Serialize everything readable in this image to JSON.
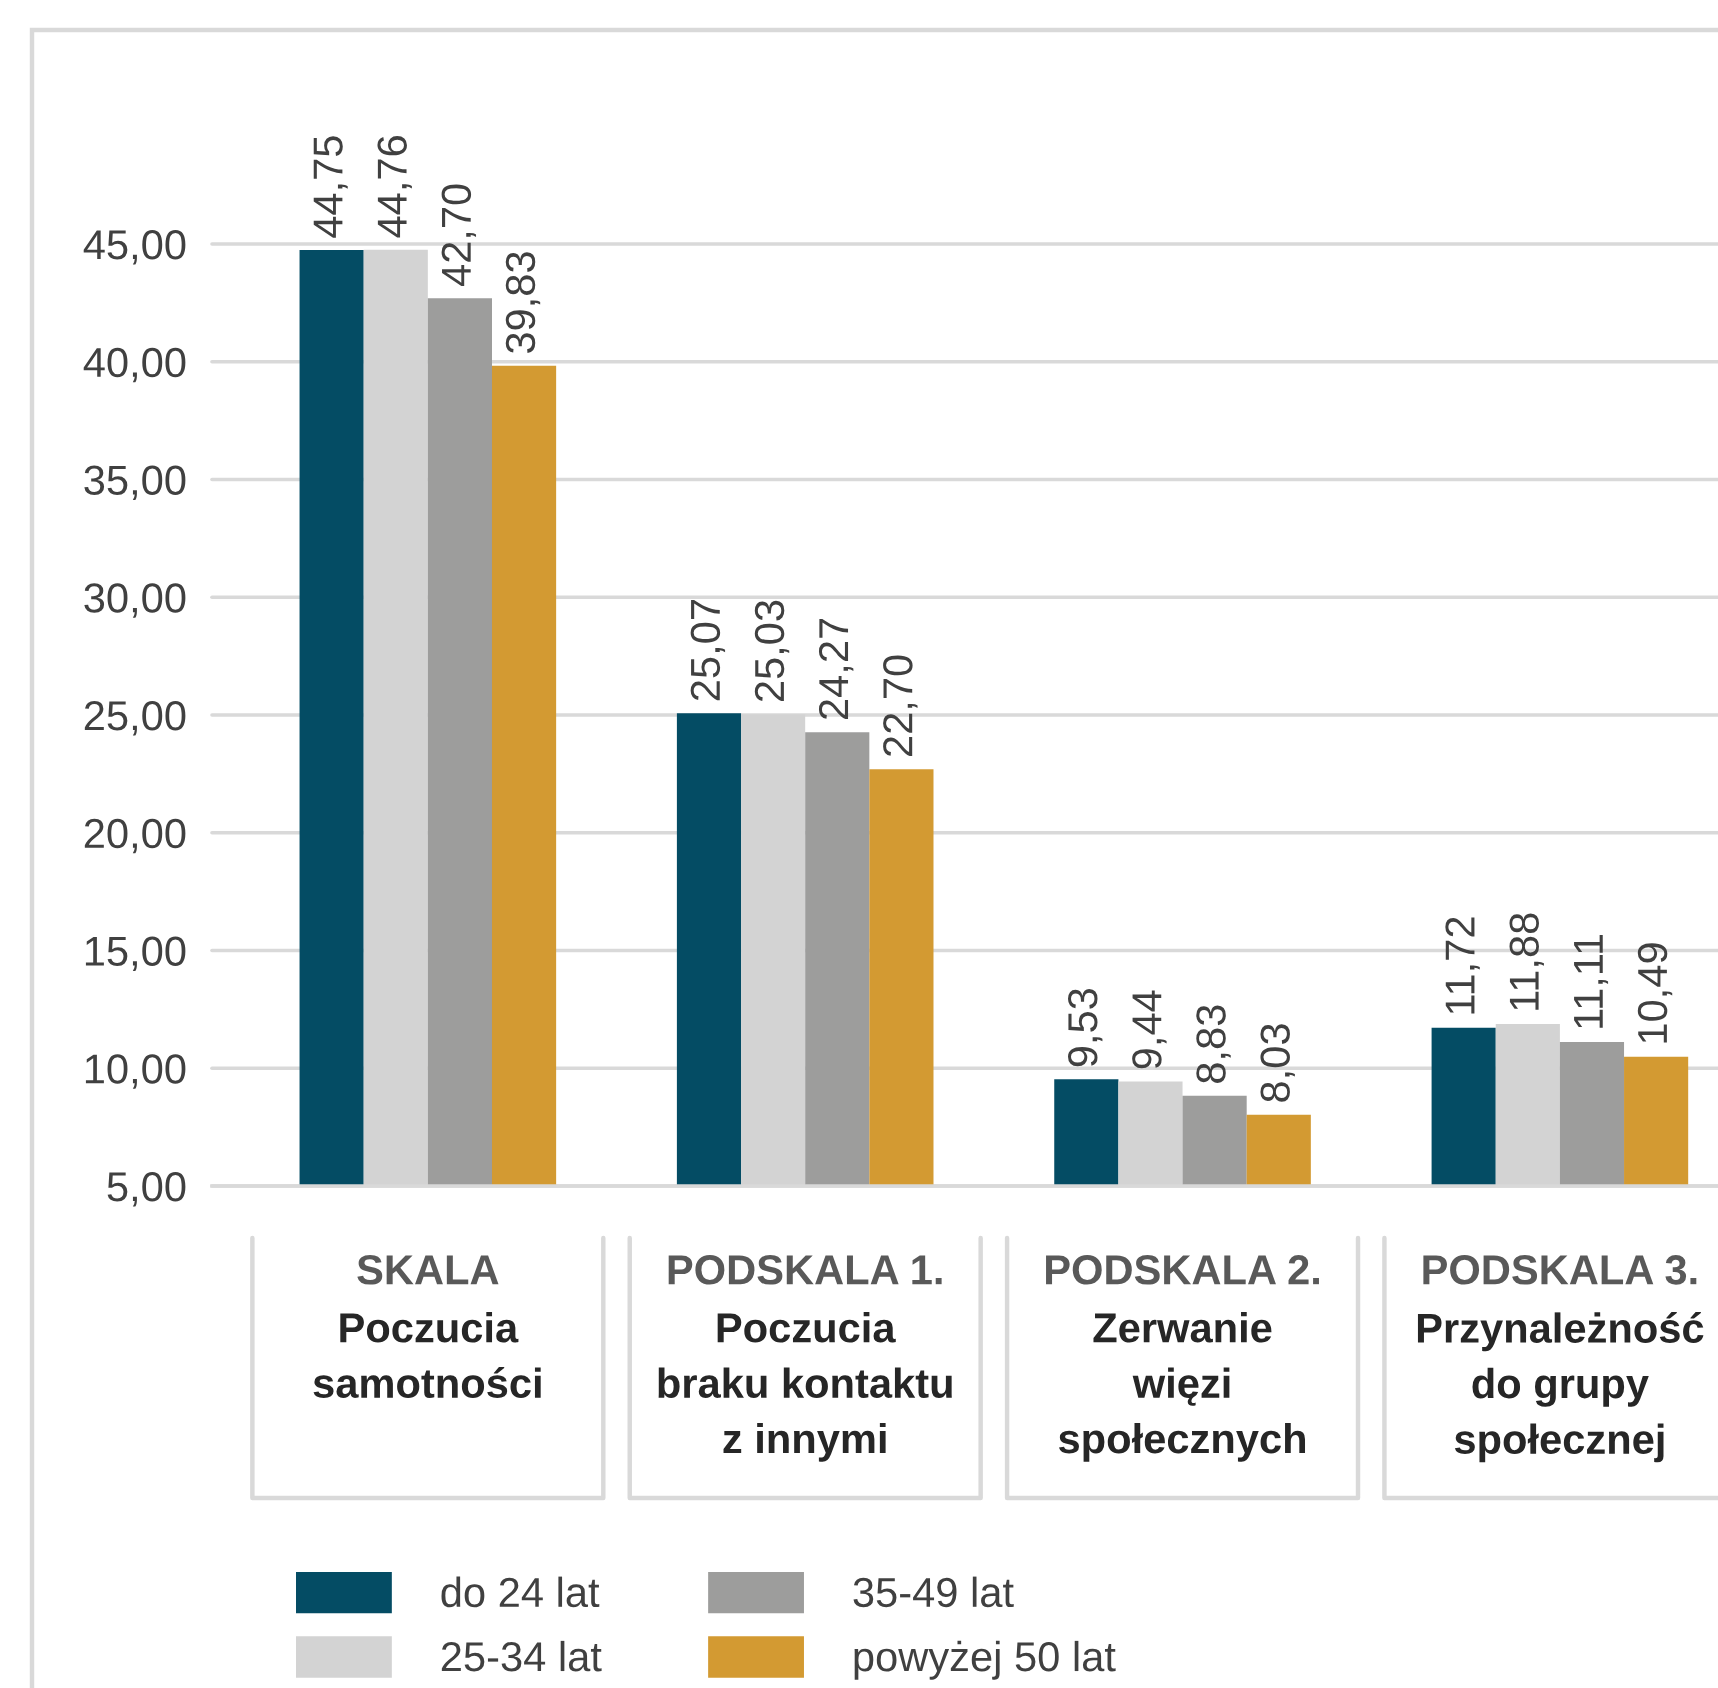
{
  "chart_data": {
    "type": "bar",
    "categories": [
      "SKALA\nPoczucia\nsamotności",
      "PODSKALA 1.\nPoczucia\nbraku kontaktu\nz innymi",
      "PODSKALA 2.\nZerwanie\nwięzi\nspołecznych",
      "PODSKALA 3.\nPrzynależność\ndo grupy\nspołecznej"
    ],
    "series": [
      {
        "name": "do 24 lat",
        "color": "#044c64",
        "values": [
          44.75,
          25.07,
          9.53,
          11.72
        ],
        "value_labels": [
          "44,75",
          "25,07",
          "9,53",
          "11,72"
        ]
      },
      {
        "name": "25-34 lat",
        "color": "#d3d3d3",
        "values": [
          44.76,
          25.03,
          9.44,
          11.88
        ],
        "value_labels": [
          "44,76",
          "25,03",
          "9,44",
          "11,88"
        ]
      },
      {
        "name": "35-49 lat",
        "color": "#9d9d9c",
        "values": [
          42.7,
          24.27,
          8.83,
          11.11
        ],
        "value_labels": [
          "42,70",
          "24,27",
          "8,83",
          "11,11"
        ]
      },
      {
        "name": "powyżej 50 lat",
        "color": "#d39a32",
        "values": [
          39.83,
          22.7,
          8.03,
          10.49
        ],
        "value_labels": [
          "39,83",
          "22,70",
          "8,03",
          "10,49"
        ]
      }
    ],
    "ylim": [
      5,
      45
    ],
    "yticks": [
      {
        "value": 5,
        "label": "5,00"
      },
      {
        "value": 10,
        "label": "10,00"
      },
      {
        "value": 15,
        "label": "15,00"
      },
      {
        "value": 20,
        "label": "20,00"
      },
      {
        "value": 25,
        "label": "25,00"
      },
      {
        "value": 30,
        "label": "30,00"
      },
      {
        "value": 35,
        "label": "35,00"
      },
      {
        "value": 40,
        "label": "40,00"
      },
      {
        "value": 45,
        "label": "45,00"
      }
    ],
    "grid": "y",
    "legend": "bottom"
  }
}
